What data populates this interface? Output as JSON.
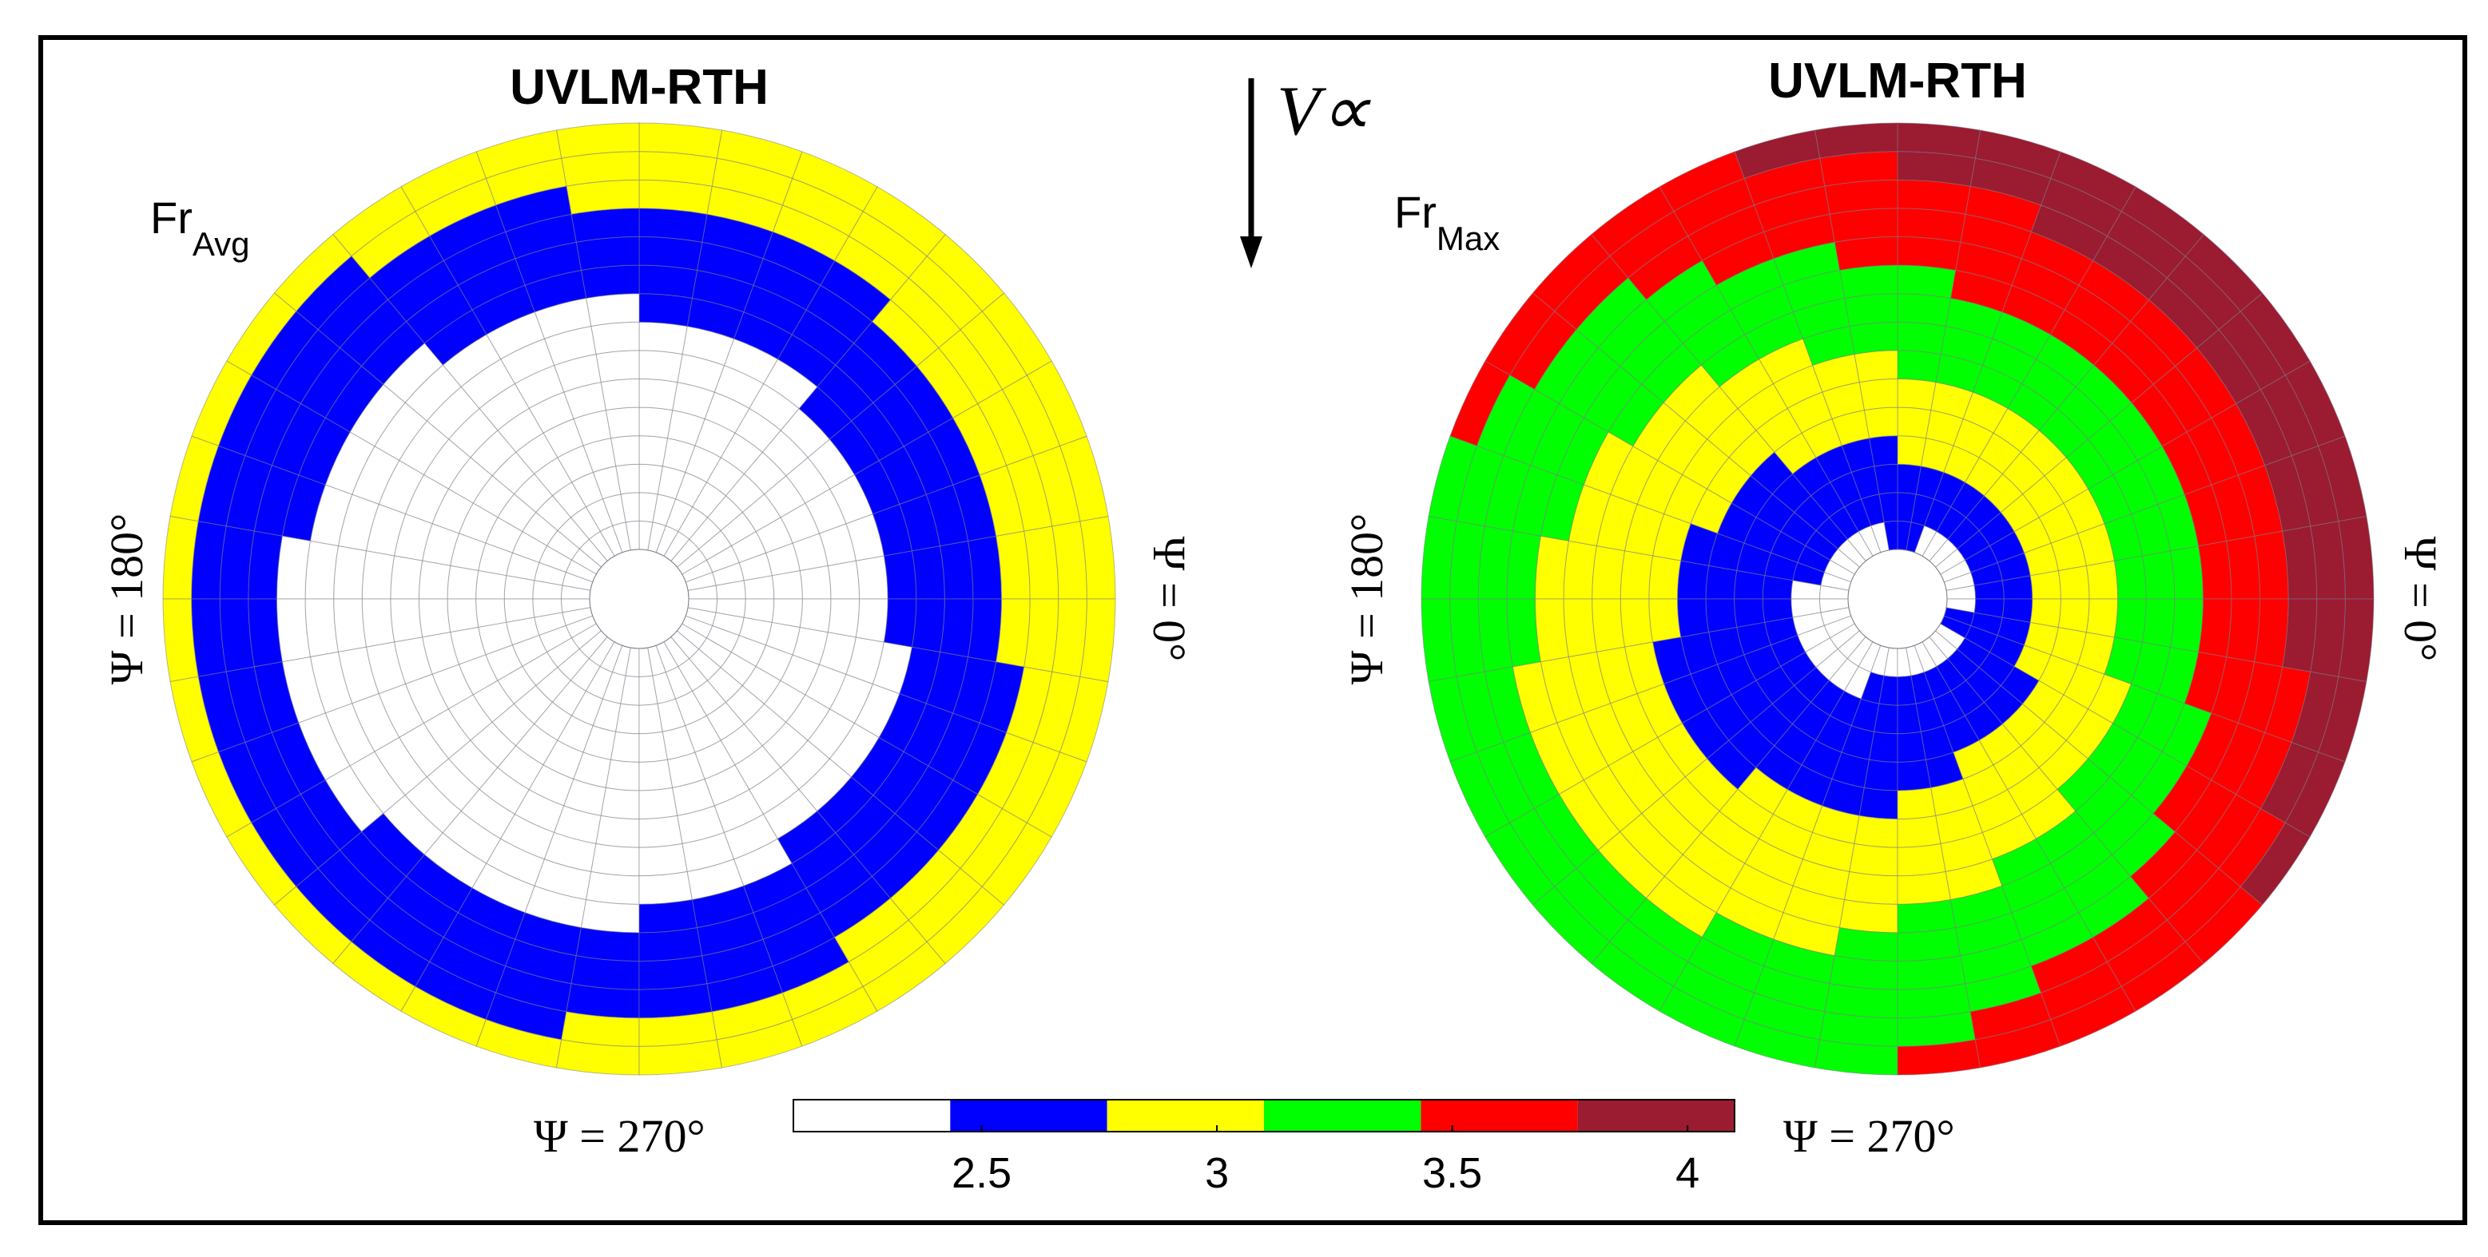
{
  "chart_data": [
    {
      "type": "polar-heatmap",
      "title": "UVLM-RTH",
      "quantity": "Fr",
      "quantity_subscript": "Avg",
      "azimuth_labels": {
        "right": "Ψ = 0°",
        "left": "Ψ = 180°",
        "bottom": "Ψ = 270°"
      },
      "radial_bins": 15,
      "azimuth_bins": 36,
      "color_bounds": [
        2.1,
        2.4,
        2.75,
        3.1,
        3.45,
        3.8,
        4.1
      ],
      "levels": [
        {
          "range": "< 2.4",
          "color": "#ffffff",
          "region": "inboard"
        },
        {
          "range": "2.4 - 2.75",
          "color": "#0000ff",
          "region": "outer annulus"
        },
        {
          "range": "2.75 - 3.1",
          "color": "#ffff00",
          "region": "tip near Ψ = 0°"
        }
      ]
    },
    {
      "type": "polar-heatmap",
      "title": "UVLM-RTH",
      "quantity": "Fr",
      "quantity_subscript": "Max",
      "azimuth_labels": {
        "right": "Ψ = 0°",
        "left": "Ψ = 180°",
        "bottom": "Ψ = 270°"
      },
      "radial_bins": 15,
      "azimuth_bins": 36,
      "color_bounds": [
        2.1,
        2.4,
        2.75,
        3.1,
        3.45,
        3.8,
        4.1
      ],
      "levels": [
        {
          "range": "< 2.4",
          "color": "#ffffff",
          "region": "inboard"
        },
        {
          "range": "2.4 - 2.75",
          "color": "#0000ff"
        },
        {
          "range": "2.75 - 3.1",
          "color": "#ffff00"
        },
        {
          "range": "3.1 - 3.45",
          "color": "#00ff00"
        },
        {
          "range": "3.45 - 3.8",
          "color": "#ff0000"
        },
        {
          "range": "> 3.8",
          "color": "#9b1b30",
          "region": "outboard, Ψ = 0°–90°"
        }
      ]
    }
  ],
  "freestream_label": "V∝",
  "colorbar": {
    "ticks": [
      2.5,
      3,
      3.5,
      4
    ],
    "tick_labels": [
      "2.5",
      "3",
      "3.5",
      "4"
    ],
    "range": [
      2.1,
      4.1
    ],
    "segments": [
      "#ffffff",
      "#0000ff",
      "#ffff00",
      "#00ff00",
      "#ff0000",
      "#9b1b30"
    ],
    "left_label": "Ψ = 270°",
    "right_label": "Ψ = 270°"
  }
}
